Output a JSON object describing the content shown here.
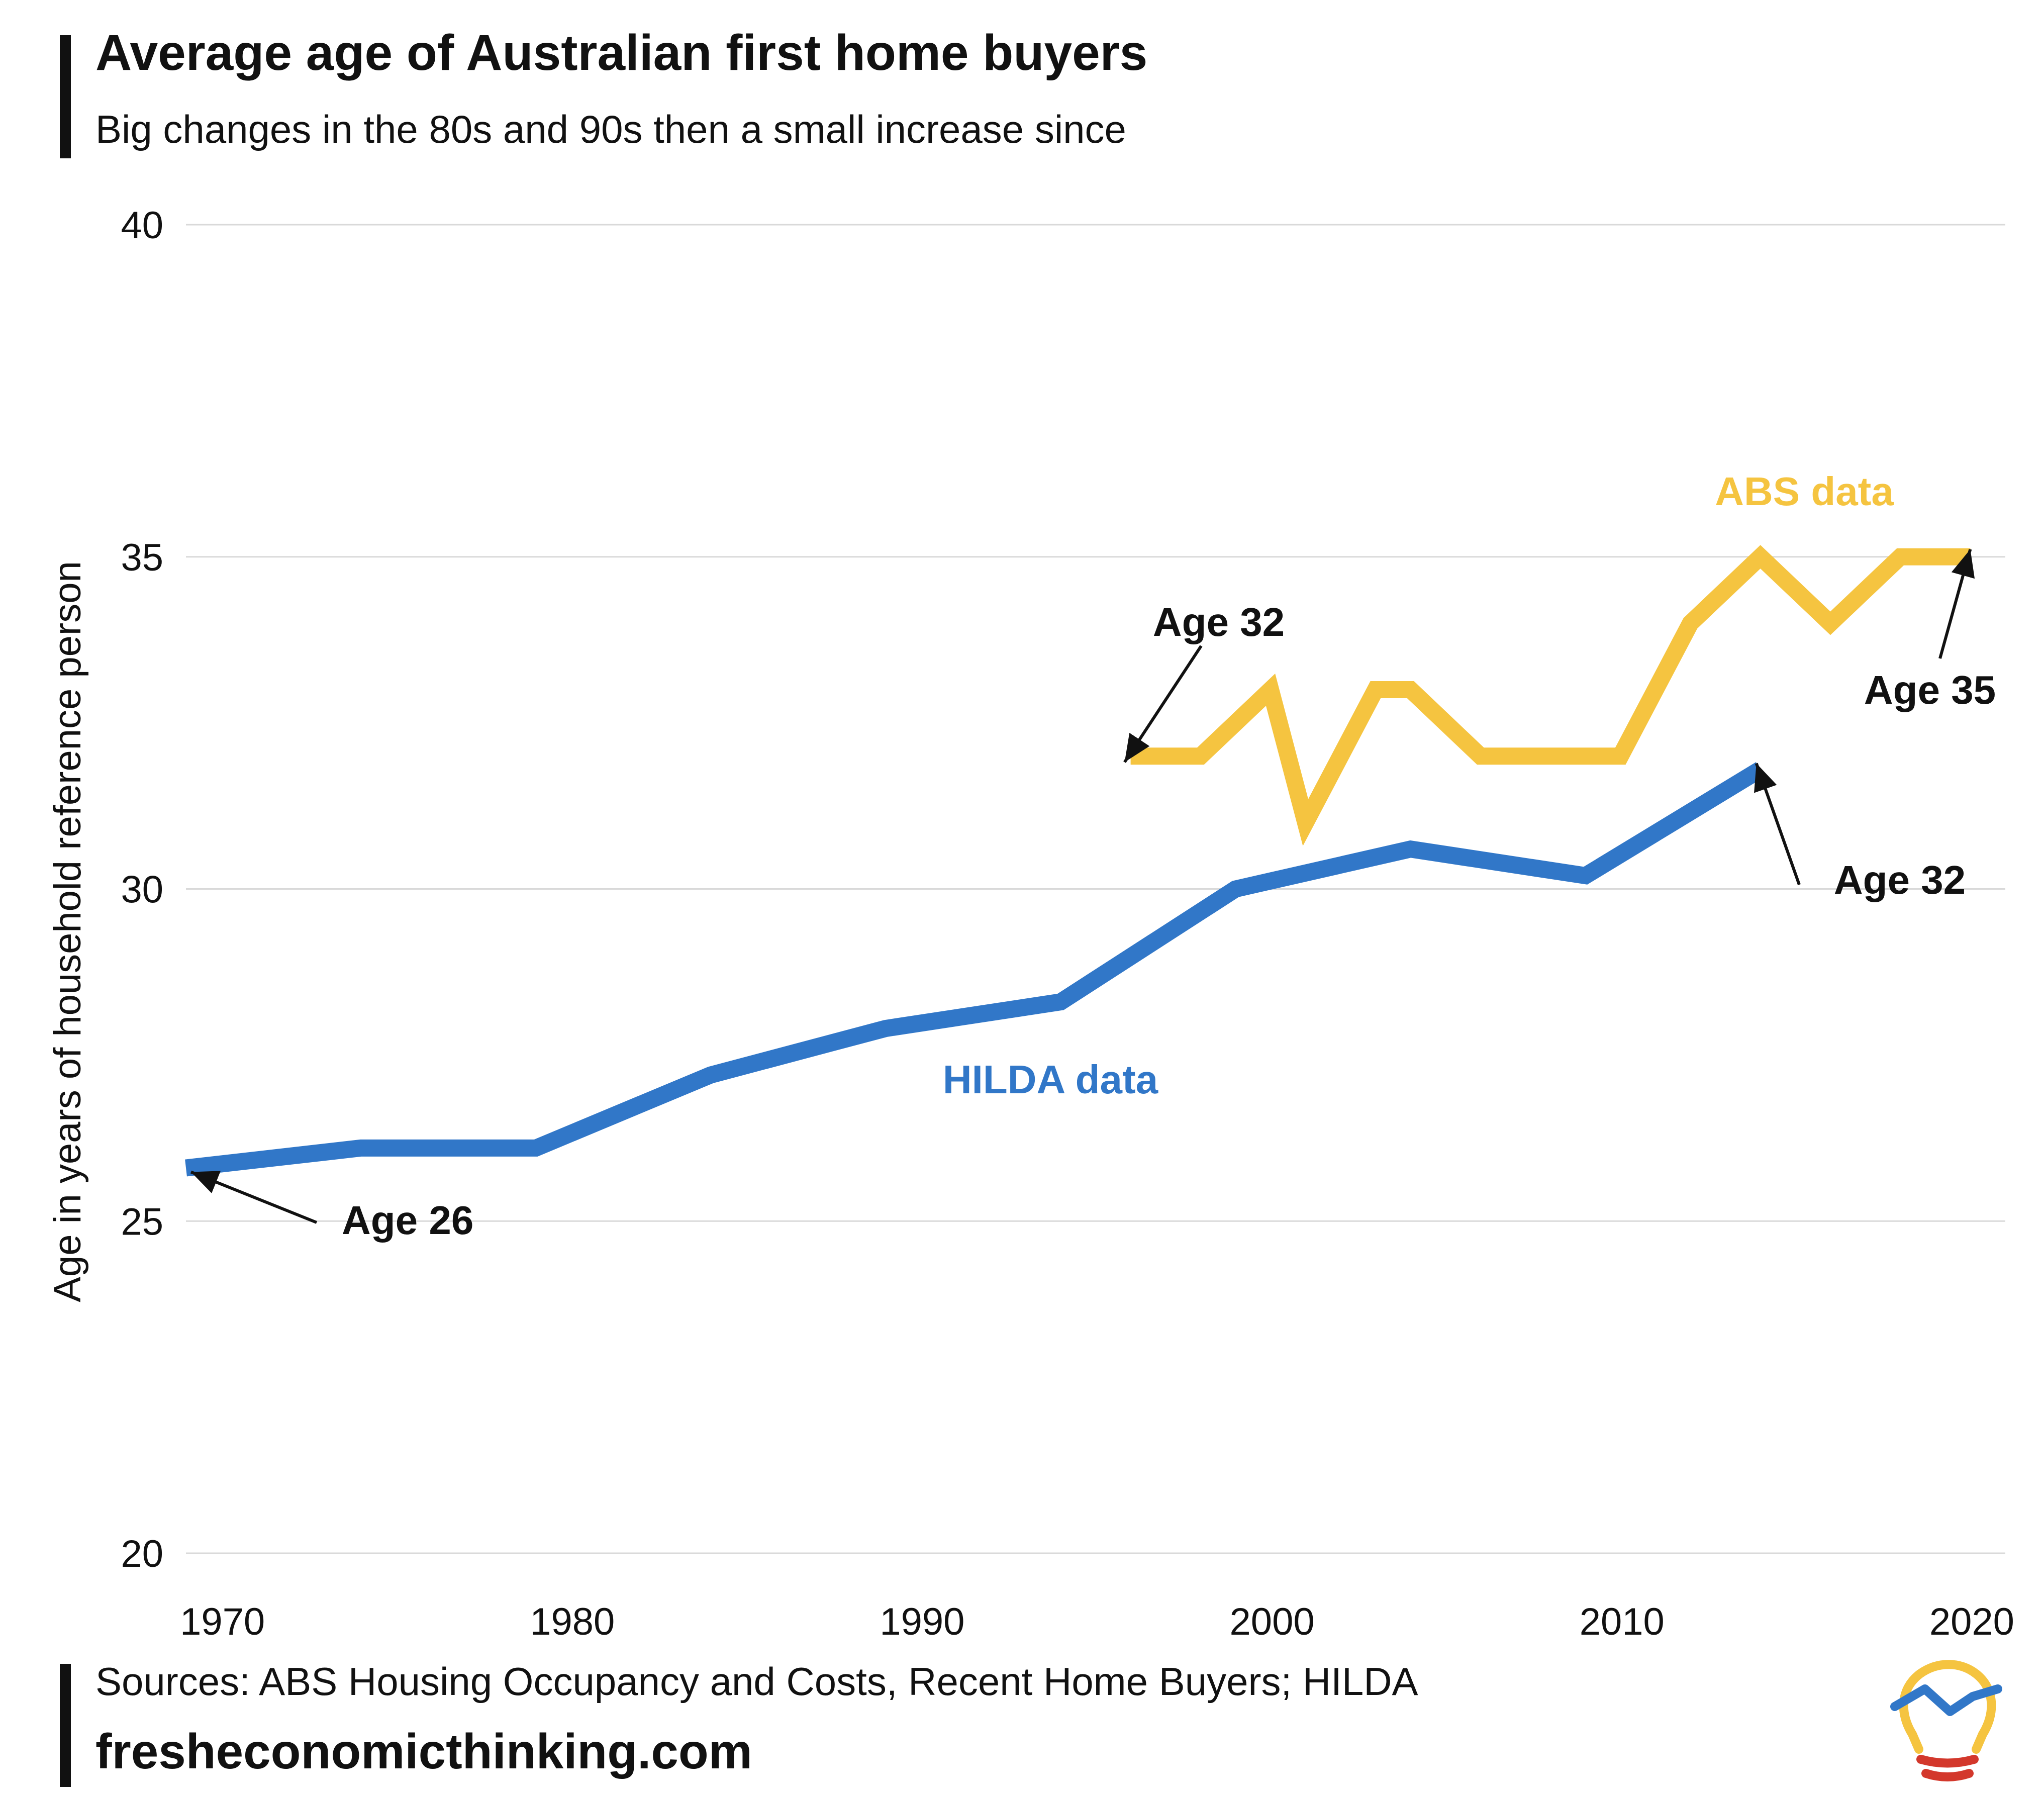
{
  "title": "Average age of Australian first home buyers",
  "subtitle": "Big changes in the 80s and 90s then a small increase since",
  "source": "Sources: ABS Housing Occupancy and Costs, Recent Home Buyers; HILDA",
  "website": "fresheconomicthinking.com",
  "logo_icon": "lightbulb-chart-icon",
  "colors": {
    "hilda": "#3177C8",
    "abs": "#F5C440",
    "grid": "#D9D9D9",
    "text": "#111111",
    "logo_red": "#D3382C"
  },
  "chart_data": {
    "type": "line",
    "title": "Average age of Australian first home buyers",
    "subtitle": "Big changes in the 80s and 90s then a small increase since",
    "xlabel": "",
    "ylabel": "Age in years of household reference person",
    "xlim": [
      1969,
      2021
    ],
    "ylim": [
      20,
      40
    ],
    "x_ticks": [
      1970,
      1980,
      1990,
      2000,
      2010,
      2020
    ],
    "y_ticks": [
      20,
      25,
      30,
      35,
      40
    ],
    "grid": true,
    "series": [
      {
        "name": "HILDA data",
        "label": "HILDA data",
        "color": "#3177C8",
        "x": [
          1969,
          1974,
          1979,
          1984,
          1989,
          1994,
          1999,
          2004,
          2009,
          2014
        ],
        "y": [
          25.8,
          26.1,
          26.1,
          27.2,
          27.9,
          28.3,
          30.0,
          30.6,
          30.2,
          31.8
        ]
      },
      {
        "name": "ABS data",
        "label": "ABS data",
        "color": "#F5C440",
        "x": [
          1996,
          1998,
          2000,
          2001,
          2003,
          2004,
          2006,
          2008,
          2010,
          2012,
          2014,
          2016,
          2018,
          2020
        ],
        "y": [
          32,
          32,
          33,
          31,
          33,
          33,
          32,
          32,
          32,
          34,
          35,
          34,
          35,
          35
        ]
      }
    ],
    "annotations": [
      {
        "text": "Age 26",
        "series": "HILDA data",
        "x": 1969,
        "y": 25.8
      },
      {
        "text": "Age 32",
        "series": "HILDA data",
        "x": 2014,
        "y": 31.8
      },
      {
        "text": "Age 32",
        "series": "ABS data",
        "x": 1996,
        "y": 32
      },
      {
        "text": "Age 35",
        "series": "ABS data",
        "x": 2020,
        "y": 35
      }
    ]
  }
}
